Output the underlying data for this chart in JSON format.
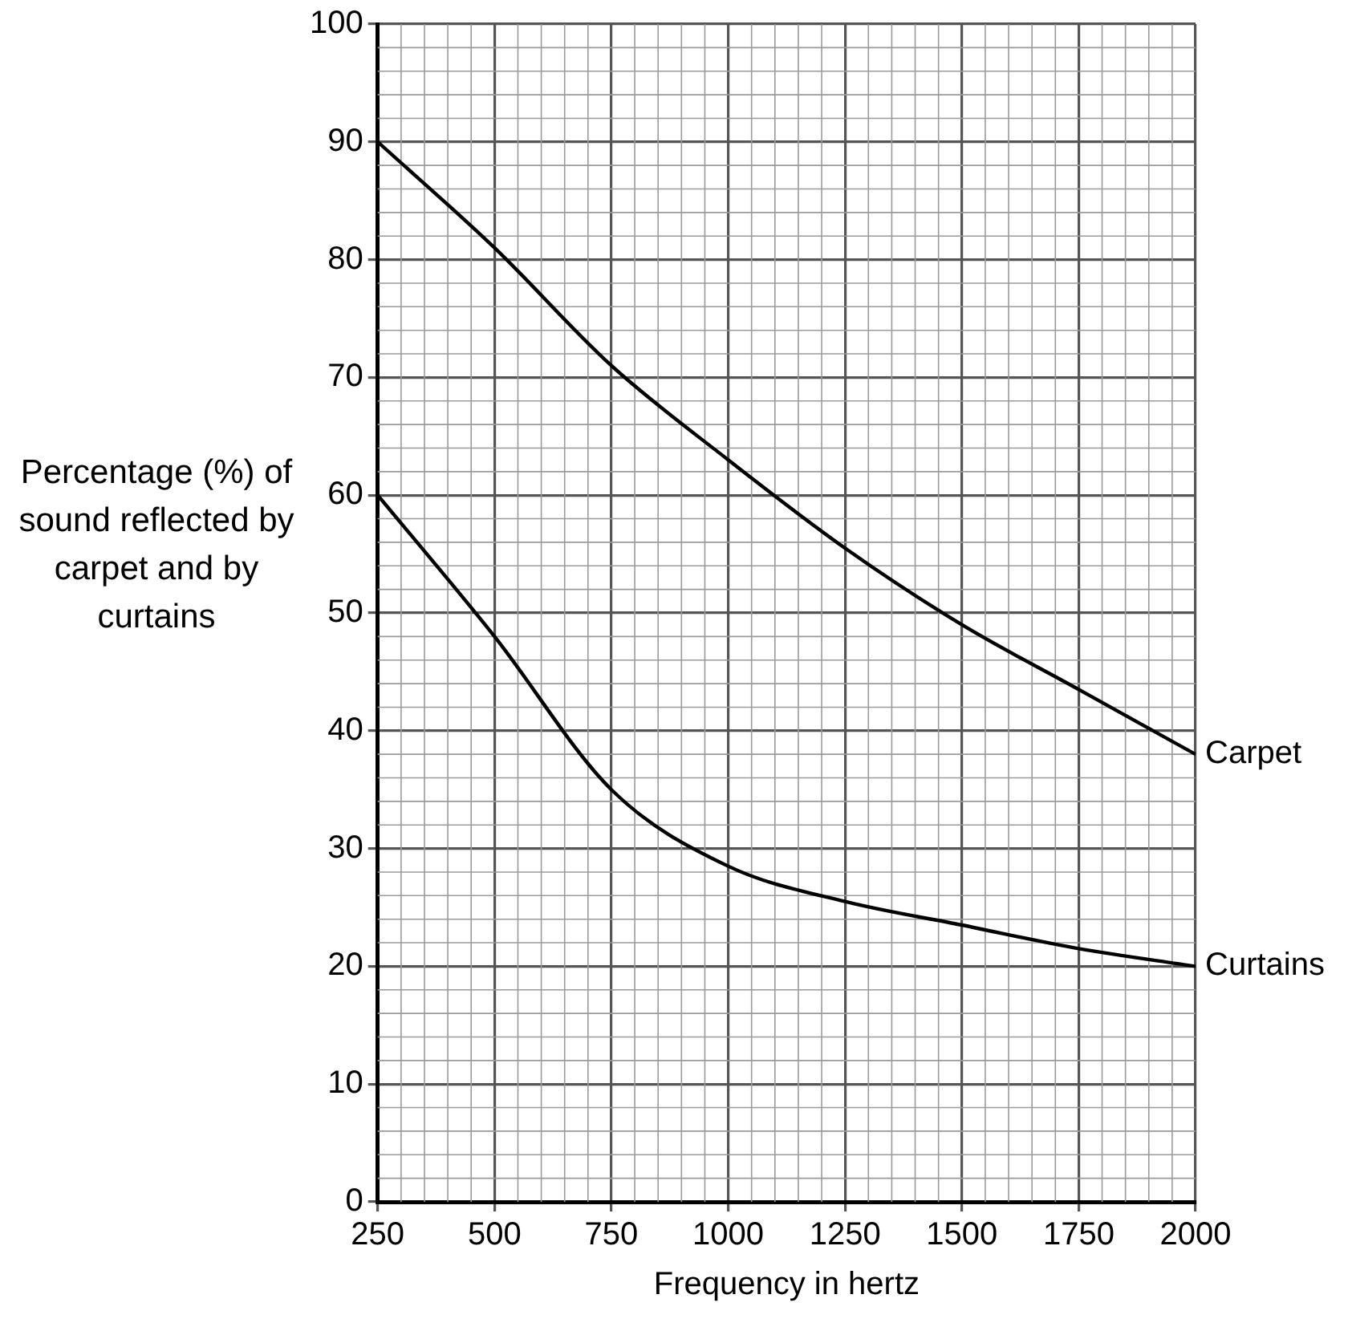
{
  "chart_data": {
    "type": "line",
    "xlabel": "Frequency in hertz",
    "ylabel": "Percentage (%) of sound reflected by carpet and by curtains",
    "x": [
      250,
      500,
      750,
      1000,
      1250,
      1500,
      1750,
      2000
    ],
    "series": [
      {
        "name": "Carpet",
        "color": "#000000",
        "values": [
          90,
          81,
          71,
          63,
          55.5,
          49,
          43.5,
          38
        ]
      },
      {
        "name": "Curtains",
        "color": "#000000",
        "values": [
          60,
          48,
          35,
          28.5,
          25.5,
          23.5,
          21.5,
          20
        ]
      }
    ],
    "xlim": [
      250,
      2000
    ],
    "xticks": [
      250,
      500,
      750,
      1000,
      1250,
      1500,
      1750,
      2000
    ],
    "ylim": [
      0,
      100
    ],
    "yticks": [
      0,
      10,
      20,
      30,
      40,
      50,
      60,
      70,
      80,
      90,
      100
    ],
    "grid": true,
    "legend": false,
    "marker": "none",
    "line_style": "solid"
  }
}
